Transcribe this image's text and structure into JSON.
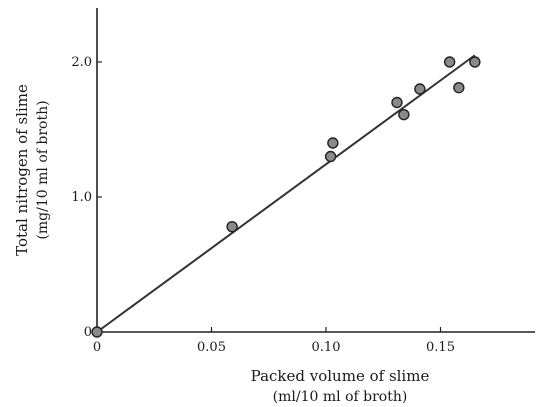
{
  "chart_data": {
    "type": "scatter",
    "title": "",
    "xlabel": "Packed volume of slime",
    "xlabel_unit": "(ml/10 ml of broth)",
    "ylabel": "Total nitrogen of slime",
    "ylabel_unit": "(mg/10 ml of broth)",
    "xlim": [
      0,
      0.165
    ],
    "ylim": [
      0,
      2.5
    ],
    "xticks": [
      "0",
      "0.05",
      "0.10",
      "0.15"
    ],
    "yticks": [
      "0",
      "1.0",
      "2.0"
    ],
    "grid": false,
    "points": [
      {
        "x": 0,
        "y": 0
      },
      {
        "x": 0.059,
        "y": 0.78
      },
      {
        "x": 0.102,
        "y": 1.3
      },
      {
        "x": 0.103,
        "y": 1.4
      },
      {
        "x": 0.131,
        "y": 1.7
      },
      {
        "x": 0.134,
        "y": 1.61
      },
      {
        "x": 0.141,
        "y": 1.8
      },
      {
        "x": 0.154,
        "y": 2.0
      },
      {
        "x": 0.158,
        "y": 1.81
      },
      {
        "x": 0.165,
        "y": 2.0
      }
    ],
    "fit_line": {
      "x": [
        0,
        0.165
      ],
      "y": [
        0,
        2.05
      ]
    }
  }
}
